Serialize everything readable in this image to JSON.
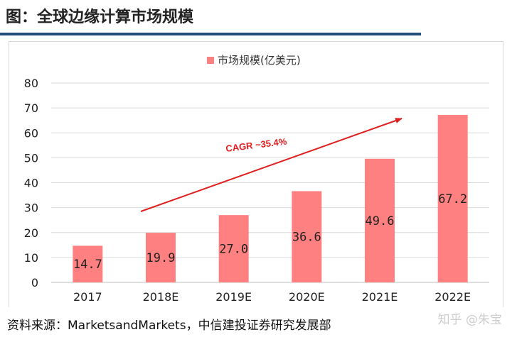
{
  "header": {
    "title": "图：全球边缘计算市场规模"
  },
  "footer": {
    "source": "资料来源：MarketsandMarkets，中信建投证券研究发展部",
    "watermark": "知乎 @朱宝"
  },
  "colors": {
    "bar": "#ff8080",
    "accent": "#1f4e79",
    "arrow": "#e02020"
  },
  "chart_data": {
    "type": "bar",
    "categories": [
      "2017",
      "2018E",
      "2019E",
      "2020E",
      "2021E",
      "2022E"
    ],
    "series": [
      {
        "name": "市场规模(亿美元)",
        "values": [
          14.7,
          19.9,
          27.0,
          36.6,
          49.6,
          67.2
        ]
      }
    ],
    "value_labels": [
      "14.7",
      "19.9",
      "27.0",
      "36.6",
      "49.6",
      "67.2"
    ],
    "yticks": [
      0,
      10,
      20,
      30,
      40,
      50,
      60,
      70,
      80
    ],
    "ylim": [
      0,
      80
    ],
    "grid": true,
    "legend_position": "top-center",
    "annotation": {
      "text": "CAGR ~35.4%"
    }
  }
}
